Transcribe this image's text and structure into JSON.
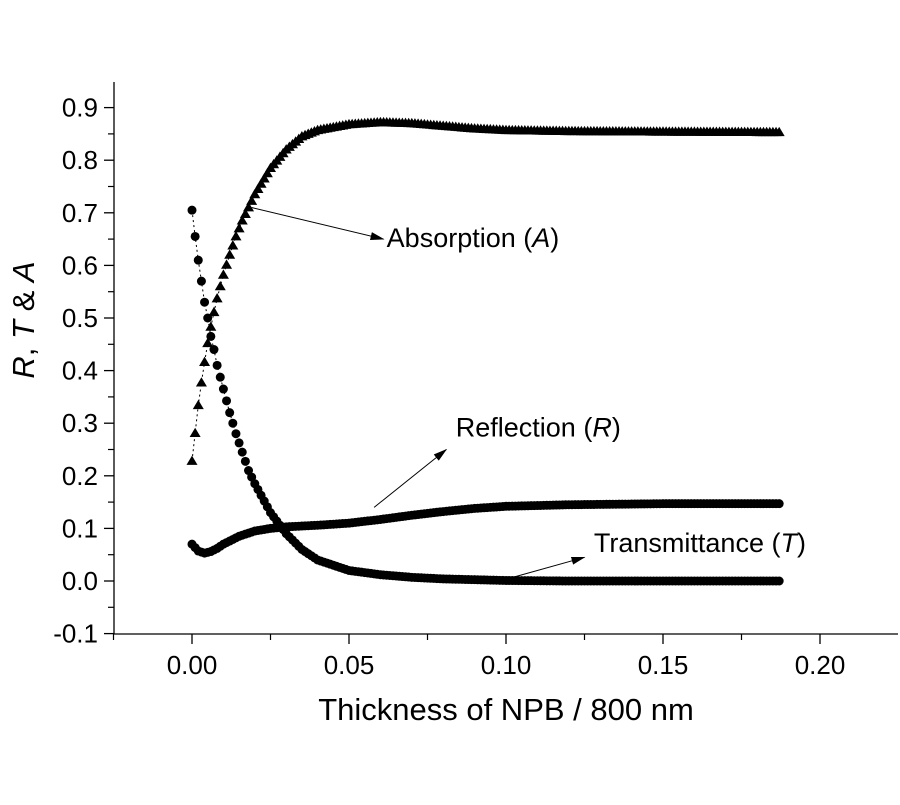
{
  "chart_data": {
    "type": "scatter",
    "title": "",
    "xlabel": "Thickness of NPB / 800 nm",
    "ylabel_parts": [
      "R",
      ", ",
      "T",
      " & ",
      "A"
    ],
    "xlim": [
      -0.025,
      0.225
    ],
    "ylim": [
      -0.1,
      0.95
    ],
    "xticks": [
      "0.00",
      "0.05",
      "0.10",
      "0.15",
      "0.20"
    ],
    "xtick_values": [
      0,
      0.05,
      0.1,
      0.15,
      0.2
    ],
    "yticks": [
      "-0.1",
      "0.0",
      "0.1",
      "0.2",
      "0.3",
      "0.4",
      "0.5",
      "0.6",
      "0.7",
      "0.8",
      "0.9"
    ],
    "ytick_values": [
      -0.1,
      0,
      0.1,
      0.2,
      0.3,
      0.4,
      0.5,
      0.6,
      0.7,
      0.8,
      0.9
    ],
    "grid": false,
    "marker_step": 0.001,
    "series": [
      {
        "name": "Absorption",
        "symbol": "A",
        "marker": "triangle",
        "x": [
          0,
          0.001,
          0.002,
          0.003,
          0.004,
          0.005,
          0.006,
          0.007,
          0.008,
          0.009,
          0.01,
          0.012,
          0.014,
          0.016,
          0.018,
          0.02,
          0.025,
          0.03,
          0.035,
          0.04,
          0.05,
          0.06,
          0.07,
          0.08,
          0.09,
          0.1,
          0.12,
          0.15,
          0.1875
        ],
        "y": [
          0.228,
          0.281,
          0.334,
          0.377,
          0.416,
          0.452,
          0.483,
          0.511,
          0.537,
          0.56,
          0.582,
          0.62,
          0.655,
          0.685,
          0.71,
          0.735,
          0.785,
          0.82,
          0.845,
          0.857,
          0.868,
          0.872,
          0.87,
          0.865,
          0.86,
          0.857,
          0.855,
          0.854,
          0.853
        ]
      },
      {
        "name": "Reflection",
        "symbol": "R",
        "marker": "circle",
        "x": [
          0,
          0.002,
          0.004,
          0.006,
          0.008,
          0.01,
          0.015,
          0.02,
          0.025,
          0.03,
          0.04,
          0.05,
          0.06,
          0.07,
          0.08,
          0.09,
          0.1,
          0.12,
          0.15,
          0.1875
        ],
        "y": [
          0.07,
          0.057,
          0.053,
          0.056,
          0.062,
          0.07,
          0.085,
          0.095,
          0.1,
          0.103,
          0.106,
          0.11,
          0.117,
          0.125,
          0.132,
          0.138,
          0.142,
          0.145,
          0.147,
          0.147
        ]
      },
      {
        "name": "Transmittance",
        "symbol": "T",
        "marker": "circle",
        "x": [
          0,
          0.001,
          0.002,
          0.003,
          0.004,
          0.005,
          0.006,
          0.007,
          0.008,
          0.01,
          0.012,
          0.014,
          0.016,
          0.018,
          0.02,
          0.025,
          0.03,
          0.035,
          0.04,
          0.05,
          0.06,
          0.07,
          0.08,
          0.1,
          0.12,
          0.1875
        ],
        "y": [
          0.705,
          0.655,
          0.61,
          0.57,
          0.53,
          0.5,
          0.465,
          0.44,
          0.41,
          0.365,
          0.32,
          0.28,
          0.245,
          0.21,
          0.185,
          0.13,
          0.09,
          0.06,
          0.04,
          0.02,
          0.012,
          0.007,
          0.004,
          0.001,
          0,
          0
        ]
      }
    ],
    "annotations": [
      {
        "label": "Absorption (",
        "italic": "A",
        "close": ")",
        "arrow_from": [
          0.019,
          0.71
        ],
        "arrow_to": [
          0.061,
          0.65
        ],
        "text_at": [
          0.062,
          0.635
        ]
      },
      {
        "label": "Reflection (",
        "italic": "R",
        "close": ")",
        "arrow_from": [
          0.058,
          0.14
        ],
        "arrow_to": [
          0.081,
          0.25
        ],
        "text_at": [
          0.084,
          0.275
        ]
      },
      {
        "label": "Transmittance (",
        "italic": "T",
        "close": ")",
        "arrow_from": [
          0.101,
          0.005
        ],
        "arrow_to": [
          0.125,
          0.045
        ],
        "text_at": [
          0.128,
          0.055
        ]
      }
    ],
    "legend": "none (inline annotations)",
    "colors": {
      "marks": "#000000",
      "background": "#ffffff"
    }
  }
}
